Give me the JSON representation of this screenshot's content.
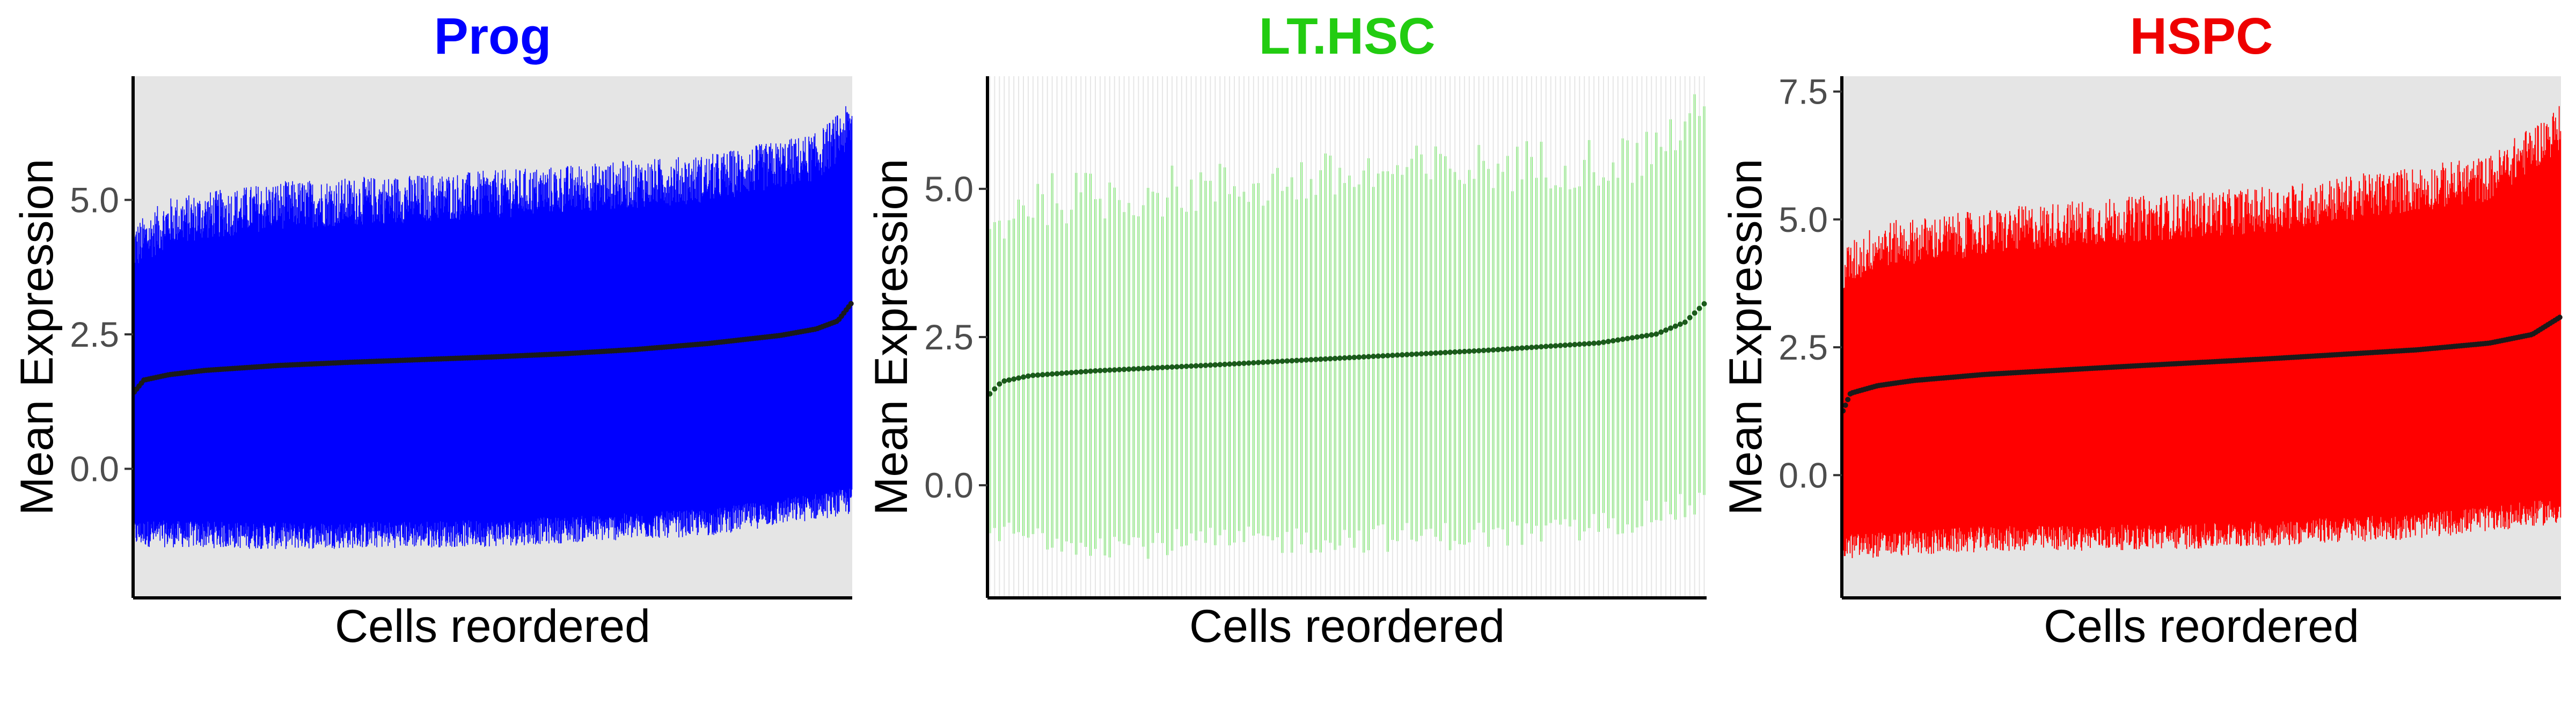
{
  "chart_data": [
    {
      "type": "errorbar-ranked",
      "title": "Prog",
      "title_color": "#0000ff",
      "bar_color": "#0000ff",
      "mean_color": "#1a1a1a",
      "background": "panel-grey",
      "xlabel": "Cells reordered",
      "ylabel": "Mean Expression",
      "yticks": [
        0.0,
        2.5,
        5.0
      ],
      "ytick_labels": [
        "0.0",
        "2.5",
        "5.0"
      ],
      "ylim": [
        -2.4,
        7.3
      ],
      "n_cells": 1400,
      "mean_curve": [
        [
          0.0,
          1.4
        ],
        [
          0.015,
          1.65
        ],
        [
          0.05,
          1.75
        ],
        [
          0.1,
          1.83
        ],
        [
          0.2,
          1.92
        ],
        [
          0.3,
          1.98
        ],
        [
          0.4,
          2.03
        ],
        [
          0.5,
          2.08
        ],
        [
          0.6,
          2.14
        ],
        [
          0.7,
          2.22
        ],
        [
          0.8,
          2.33
        ],
        [
          0.9,
          2.48
        ],
        [
          0.95,
          2.6
        ],
        [
          0.98,
          2.75
        ],
        [
          1.0,
          3.1
        ]
      ],
      "upper_curve": [
        [
          0.0,
          4.1
        ],
        [
          0.05,
          4.6
        ],
        [
          0.2,
          4.9
        ],
        [
          0.5,
          5.1
        ],
        [
          0.8,
          5.4
        ],
        [
          0.95,
          5.8
        ],
        [
          1.0,
          6.4
        ]
      ],
      "lower_curve": [
        [
          0.0,
          -1.2
        ],
        [
          0.2,
          -1.25
        ],
        [
          0.5,
          -1.2
        ],
        [
          0.8,
          -1.0
        ],
        [
          1.0,
          -0.6
        ]
      ]
    },
    {
      "type": "errorbar-ranked",
      "title": "LT.HSC",
      "title_color": "#22cc11",
      "bar_color": "#66ee55",
      "mean_color": "#1a5a1a",
      "background": "white-grid",
      "xlabel": "Cells reordered",
      "ylabel": "Mean Expression",
      "yticks": [
        0.0,
        2.5,
        5.0
      ],
      "ytick_labels": [
        "0.0",
        "2.5",
        "5.0"
      ],
      "ylim": [
        -1.9,
        6.9
      ],
      "n_cells": 150,
      "mean_curve": [
        [
          0.0,
          1.5
        ],
        [
          0.02,
          1.75
        ],
        [
          0.06,
          1.85
        ],
        [
          0.15,
          1.93
        ],
        [
          0.3,
          2.02
        ],
        [
          0.5,
          2.15
        ],
        [
          0.7,
          2.28
        ],
        [
          0.85,
          2.4
        ],
        [
          0.93,
          2.55
        ],
        [
          0.97,
          2.75
        ],
        [
          1.0,
          3.1
        ]
      ],
      "upper_curve": [
        [
          0.0,
          4.2
        ],
        [
          0.05,
          4.8
        ],
        [
          0.3,
          5.0
        ],
        [
          0.6,
          5.3
        ],
        [
          0.9,
          5.5
        ],
        [
          1.0,
          6.3
        ]
      ],
      "lower_curve": [
        [
          0.0,
          -0.8
        ],
        [
          0.2,
          -1.0
        ],
        [
          0.5,
          -0.9
        ],
        [
          0.8,
          -0.8
        ],
        [
          1.0,
          -0.3
        ]
      ]
    },
    {
      "type": "errorbar-ranked",
      "title": "HSPC",
      "title_color": "#ee0000",
      "bar_color": "#ff0000",
      "mean_color": "#1a1a1a",
      "background": "panel-grey",
      "xlabel": "Cells reordered",
      "ylabel": "Mean Expression",
      "yticks": [
        0.0,
        2.5,
        5.0,
        7.5
      ],
      "ytick_labels": [
        "0.0",
        "2.5",
        "5.0",
        "7.5"
      ],
      "ylim": [
        -2.4,
        7.8
      ],
      "n_cells": 1000,
      "mean_curve": [
        [
          0.0,
          1.2
        ],
        [
          0.012,
          1.6
        ],
        [
          0.05,
          1.75
        ],
        [
          0.1,
          1.85
        ],
        [
          0.2,
          1.97
        ],
        [
          0.4,
          2.13
        ],
        [
          0.6,
          2.28
        ],
        [
          0.8,
          2.45
        ],
        [
          0.9,
          2.58
        ],
        [
          0.96,
          2.75
        ],
        [
          1.0,
          3.1
        ]
      ],
      "upper_curve": [
        [
          0.0,
          4.0
        ],
        [
          0.05,
          4.5
        ],
        [
          0.3,
          4.9
        ],
        [
          0.6,
          5.2
        ],
        [
          0.9,
          5.8
        ],
        [
          1.0,
          6.8
        ]
      ],
      "lower_curve": [
        [
          0.0,
          -1.4
        ],
        [
          0.2,
          -1.25
        ],
        [
          0.5,
          -1.2
        ],
        [
          0.8,
          -1.0
        ],
        [
          1.0,
          -0.7
        ]
      ]
    }
  ]
}
